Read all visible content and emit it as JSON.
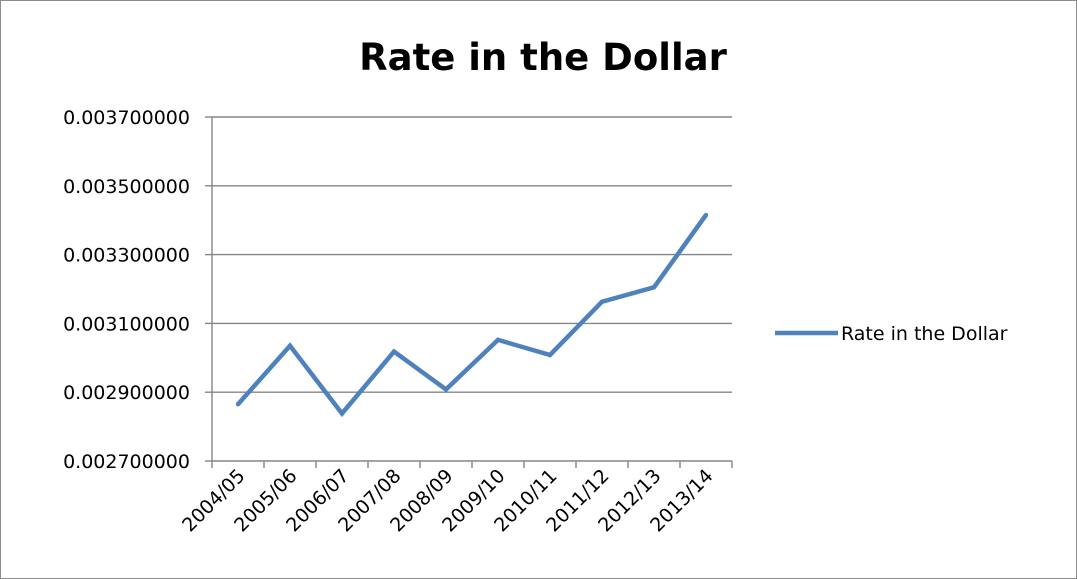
{
  "chart_data": {
    "type": "line",
    "title": "Rate in the Dollar",
    "xlabel": "",
    "ylabel": "",
    "categories": [
      "2004/05",
      "2005/06",
      "2006/07",
      "2007/08",
      "2008/09",
      "2009/10",
      "2010/11",
      "2011/12",
      "2012/13",
      "2013/14"
    ],
    "series": [
      {
        "name": "Rate in the Dollar",
        "color": "#4f81bd",
        "values": [
          0.002865,
          0.003035,
          0.002838,
          0.003018,
          0.002908,
          0.003052,
          0.003008,
          0.003163,
          0.003205,
          0.003415
        ]
      }
    ],
    "ylim": [
      0.0027,
      0.0037
    ],
    "yticks": [
      "0.002700000",
      "0.002900000",
      "0.003100000",
      "0.003300000",
      "0.003500000",
      "0.003700000"
    ],
    "ytick_values": [
      0.0027,
      0.0029,
      0.0031,
      0.0033,
      0.0035,
      0.0037
    ],
    "grid": true,
    "legend_position": "right"
  }
}
